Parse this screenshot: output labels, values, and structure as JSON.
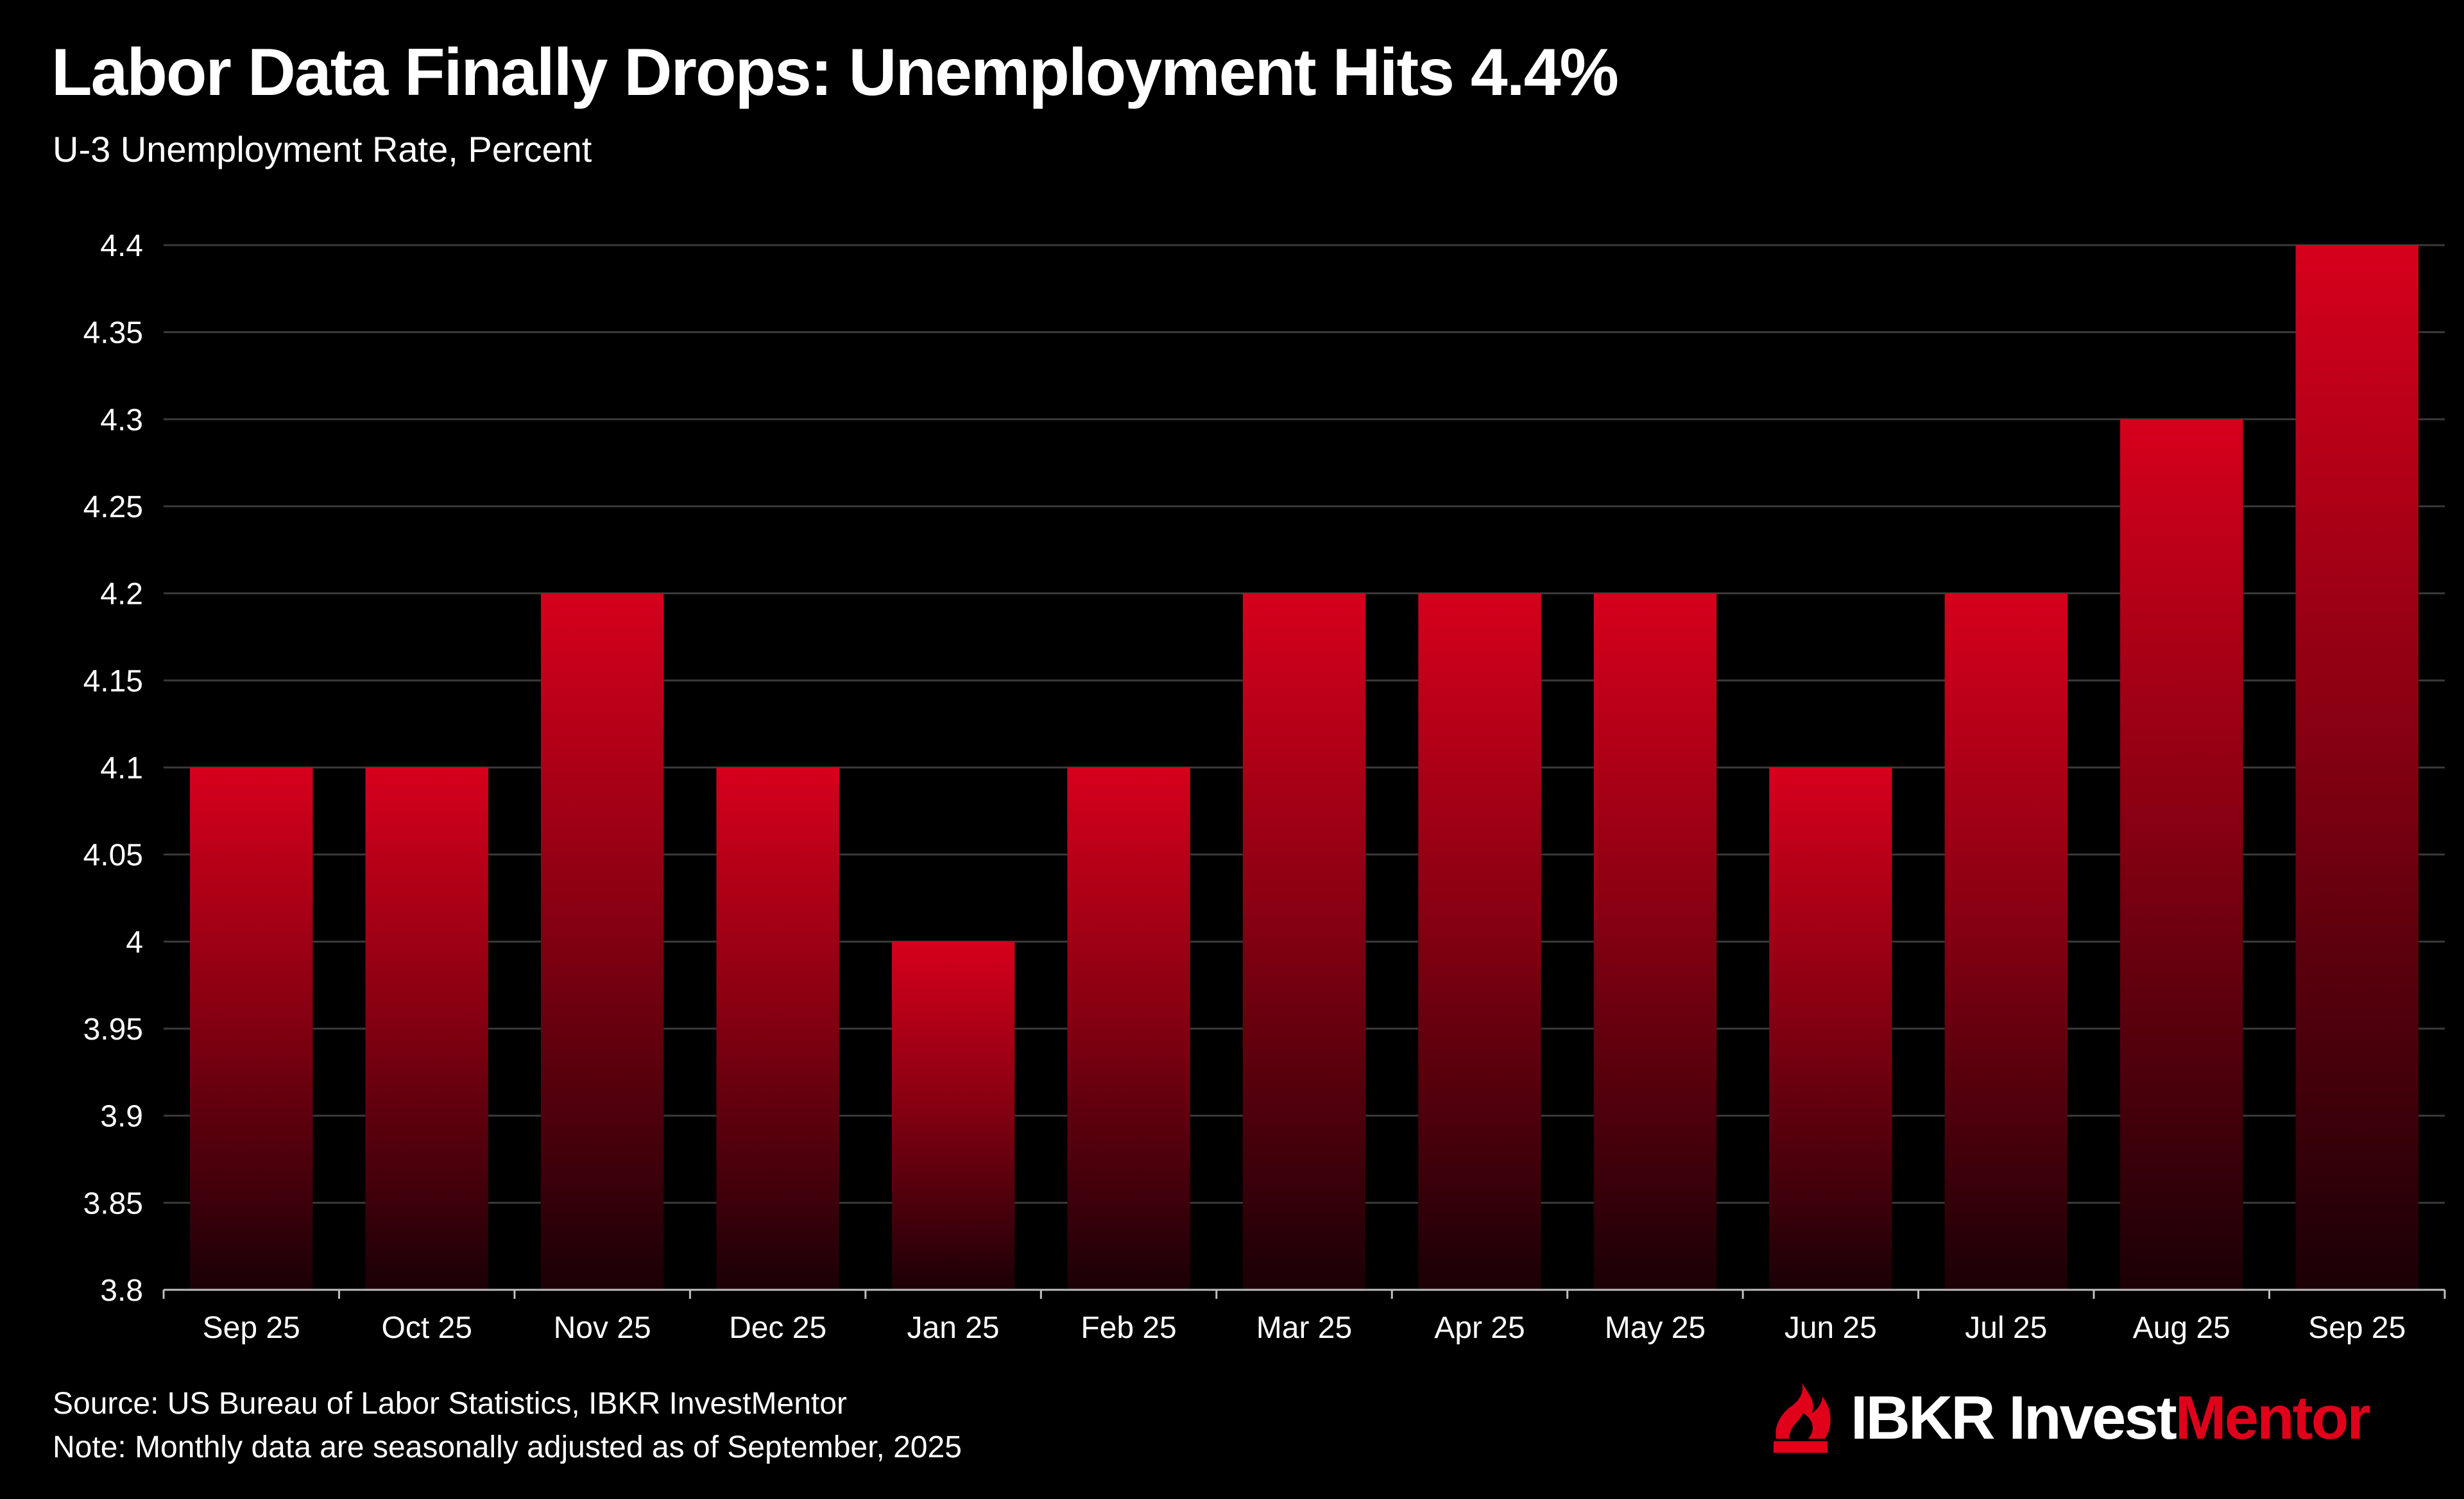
{
  "header": {
    "title": "Labor Data Finally Drops: Unemployment Hits 4.4%",
    "subtitle": "U-3 Unemployment Rate, Percent"
  },
  "footer": {
    "source": "Source: US Bureau of Labor Statistics, IBKR InvestMentor",
    "note": "Note: Monthly data are seasonally adjusted as of September, 2025"
  },
  "brand": {
    "name_part1": "IBKR",
    "name_part2": "Invest",
    "name_part3": "Mentor",
    "icon": "ibkr-flame-logo-icon"
  },
  "colors": {
    "background": "#000000",
    "bar_top": "#d6001c",
    "bar_bottom": "#1a0006",
    "gridline": "#3a3a3a",
    "axis": "#bfbfbf",
    "text": "#ffffff",
    "brand_accent": "#e1001a"
  },
  "chart_data": {
    "type": "bar",
    "title": "Labor Data Finally Drops: Unemployment Hits 4.4%",
    "subtitle": "U-3 Unemployment Rate, Percent",
    "xlabel": "",
    "ylabel": "",
    "categories": [
      "Sep 25",
      "Oct 25",
      "Nov 25",
      "Dec 25",
      "Jan 25",
      "Feb 25",
      "Mar 25",
      "Apr 25",
      "May 25",
      "Jun 25",
      "Jul 25",
      "Aug 25",
      "Sep 25"
    ],
    "series": [
      {
        "name": "U-3 Unemployment Rate",
        "values": [
          4.1,
          4.1,
          4.2,
          4.1,
          4.0,
          4.1,
          4.2,
          4.2,
          4.2,
          4.1,
          4.2,
          4.3,
          4.4
        ]
      }
    ],
    "ylim": [
      3.8,
      4.4
    ],
    "yticks": [
      3.8,
      3.85,
      3.9,
      3.95,
      4,
      4.05,
      4.1,
      4.15,
      4.2,
      4.25,
      4.3,
      4.35,
      4.4
    ],
    "ytick_labels": [
      "3.8",
      "3.85",
      "3.9",
      "3.95",
      "4",
      "4.05",
      "4.1",
      "4.15",
      "4.2",
      "4.25",
      "4.3",
      "4.35",
      "4.4"
    ],
    "grid": true,
    "legend": "none"
  }
}
